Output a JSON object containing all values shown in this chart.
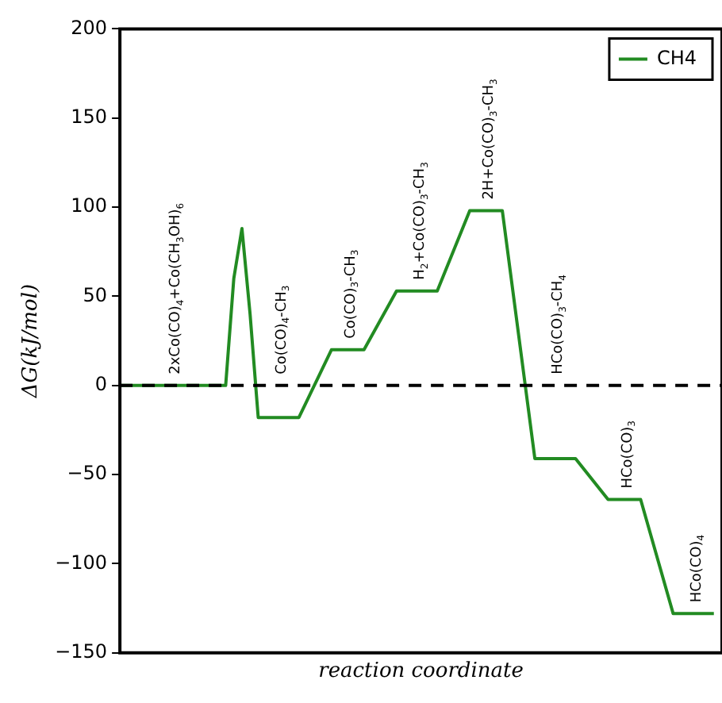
{
  "chart_data": {
    "type": "line",
    "xlabel": "reaction coordinate",
    "ylabel": "ΔG(kJ/mol)",
    "categories": [
      null,
      null,
      null,
      null,
      null,
      null,
      null,
      null,
      null,
      null,
      null,
      null,
      null,
      null,
      null,
      null,
      null,
      null,
      null,
      null,
      null,
      null,
      null,
      null,
      null,
      null,
      null,
      null,
      null,
      null,
      null,
      null,
      null,
      null,
      null,
      null,
      null,
      null,
      null,
      null,
      null,
      null,
      null,
      null,
      null,
      null,
      null,
      null,
      null,
      null,
      null,
      null,
      null,
      null,
      null,
      null,
      null,
      null,
      null,
      null,
      null,
      null,
      null,
      null,
      null,
      null,
      null,
      null,
      null,
      null,
      null,
      null,
      null,
      null,
      null
    ],
    "series": [
      {
        "name": "CH4",
        "color": "#228b22",
        "line_style": "solid",
        "values": [
          0,
          0,
          0,
          0,
          0,
          0,
          0,
          0,
          0,
          0,
          0,
          0,
          0,
          0,
          60,
          88,
          40,
          -18,
          -18,
          -18,
          -18,
          -18,
          -18,
          null,
          null,
          null,
          20,
          20,
          20,
          20,
          20,
          null,
          null,
          null,
          53,
          53,
          53,
          53,
          53,
          53,
          null,
          null,
          null,
          98,
          98,
          98,
          98,
          98,
          null,
          null,
          null,
          -41,
          -41,
          -41,
          -41,
          -41,
          -41,
          null,
          null,
          null,
          -64,
          -64,
          -64,
          -64,
          -64,
          null,
          null,
          null,
          -128,
          -128,
          -128,
          -128,
          -128,
          -128,
          null
        ]
      }
    ],
    "ylim": [
      -150,
      200
    ],
    "yticks": [
      -150,
      -100,
      -50,
      0,
      50,
      100,
      150,
      200
    ],
    "grid": false,
    "legend": "top right",
    "tick_labels": "y",
    "ref_lines": [
      {
        "axis": "y",
        "value": 0,
        "color": "#000000",
        "line_style": "dashed"
      }
    ],
    "annotations": [
      {
        "text": "2xCo(CO)$_{4}$+Co(CH$_{3}$OH)$_{6}$",
        "y": 0
      },
      "Co(CO)$_{4}$-CH$_{3}$",
      {
        "text": "Co(CO)$_{3}$-CH$_{3}$",
        "y": 20
      },
      {
        "text": "H$_{2}$+Co(CO)$_{3}$-CH$_{3}$",
        "y": 53
      },
      {
        "text": "2H+Co(CO)$_{3}$-CH$_{3}$",
        "y": 98
      },
      "HCo(CO)$_{3}$-CH$_{4}$",
      {
        "text": "HCo(CO)$_{3}$",
        "y": -64
      },
      {
        "text": "HCo(CO)$_{4}$",
        "y": -128
      }
    ]
  }
}
